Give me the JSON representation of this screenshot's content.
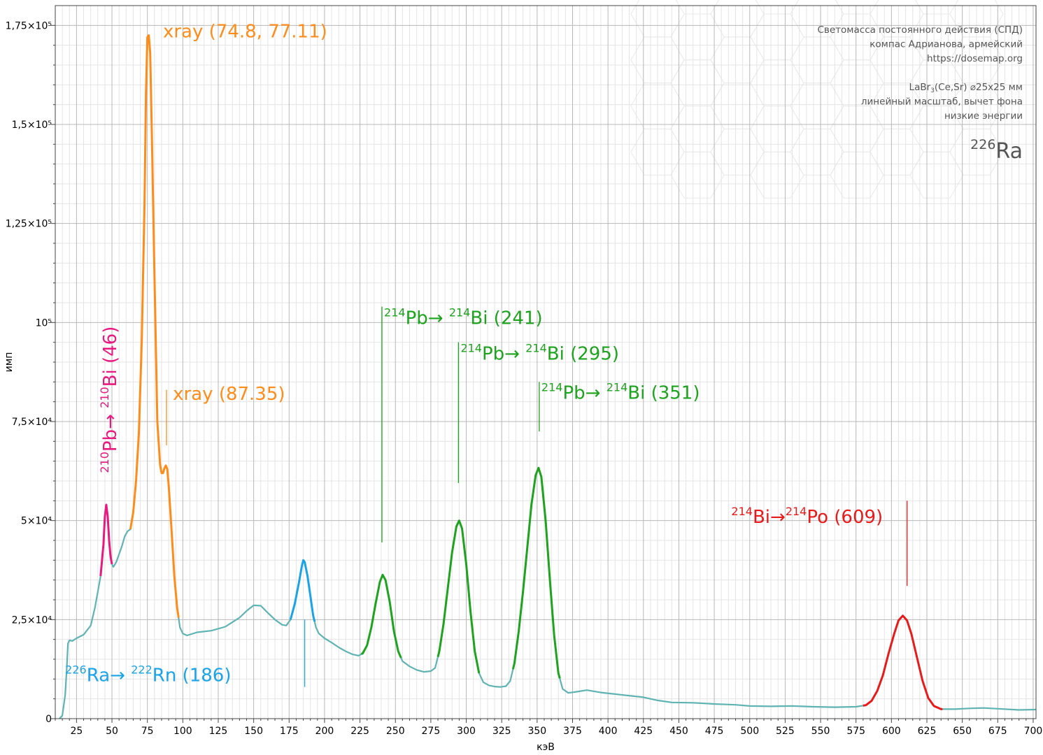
{
  "chart_data": {
    "type": "line",
    "xlabel": "кэВ",
    "ylabel": "имп",
    "xlim": [
      10,
      702
    ],
    "ylim": [
      0,
      180000
    ],
    "x_ticks": [
      25,
      50,
      75,
      100,
      125,
      150,
      175,
      200,
      225,
      250,
      275,
      300,
      325,
      350,
      375,
      400,
      425,
      450,
      475,
      500,
      525,
      550,
      575,
      600,
      625,
      650,
      675,
      700
    ],
    "y_ticks": [
      {
        "value": 0,
        "label": "0"
      },
      {
        "value": 25000,
        "label": "2,5×10⁴"
      },
      {
        "value": 50000,
        "label": "5×10⁴"
      },
      {
        "value": 75000,
        "label": "7,5×10⁴"
      },
      {
        "value": 100000,
        "label": "10⁵"
      },
      {
        "value": 125000,
        "label": "1,25×10⁵"
      },
      {
        "value": 150000,
        "label": "1,5×10⁵"
      },
      {
        "value": 175000,
        "label": "1,75×10⁵"
      }
    ],
    "grid": true,
    "spectrum": {
      "name": "",
      "color": "#5fb3b3",
      "points": [
        [
          13,
          0
        ],
        [
          15,
          800
        ],
        [
          17,
          6000
        ],
        [
          18,
          12000
        ],
        [
          19,
          19000
        ],
        [
          20,
          19800
        ],
        [
          22,
          19600
        ],
        [
          25,
          20300
        ],
        [
          30,
          21200
        ],
        [
          35,
          23500
        ],
        [
          38,
          28000
        ],
        [
          40,
          32000
        ],
        [
          42,
          36000
        ],
        [
          44,
          44000
        ],
        [
          45,
          51000
        ],
        [
          46,
          54000
        ],
        [
          47,
          51000
        ],
        [
          48,
          45000
        ],
        [
          49,
          41000
        ],
        [
          50,
          39000
        ],
        [
          51,
          38300
        ],
        [
          53,
          39500
        ],
        [
          55,
          41500
        ],
        [
          57,
          43500
        ],
        [
          59,
          46000
        ],
        [
          61,
          47300
        ],
        [
          63,
          47800
        ],
        [
          65,
          52000
        ],
        [
          67,
          60000
        ],
        [
          69,
          72000
        ],
        [
          71,
          95000
        ],
        [
          73,
          130000
        ],
        [
          74,
          158000
        ],
        [
          75,
          172000
        ],
        [
          76,
          172500
        ],
        [
          77,
          168000
        ],
        [
          78,
          150000
        ],
        [
          80,
          112000
        ],
        [
          82,
          75000
        ],
        [
          84,
          64000
        ],
        [
          85,
          62000
        ],
        [
          86,
          62000
        ],
        [
          87,
          63200
        ],
        [
          88,
          63900
        ],
        [
          89,
          63000
        ],
        [
          90,
          59000
        ],
        [
          92,
          48000
        ],
        [
          94,
          36000
        ],
        [
          96,
          28000
        ],
        [
          98,
          23000
        ],
        [
          100,
          21500
        ],
        [
          103,
          21000
        ],
        [
          110,
          21800
        ],
        [
          120,
          22200
        ],
        [
          130,
          23200
        ],
        [
          140,
          25500
        ],
        [
          145,
          27200
        ],
        [
          150,
          28600
        ],
        [
          155,
          28500
        ],
        [
          160,
          26700
        ],
        [
          165,
          25000
        ],
        [
          170,
          23700
        ],
        [
          173,
          23500
        ],
        [
          176,
          25000
        ],
        [
          179,
          29000
        ],
        [
          182,
          34500
        ],
        [
          184,
          38500
        ],
        [
          185,
          40000
        ],
        [
          186,
          39500
        ],
        [
          188,
          36000
        ],
        [
          190,
          31000
        ],
        [
          192,
          26000
        ],
        [
          194,
          23000
        ],
        [
          196,
          21500
        ],
        [
          200,
          20300
        ],
        [
          205,
          19200
        ],
        [
          210,
          18000
        ],
        [
          215,
          17000
        ],
        [
          220,
          16200
        ],
        [
          224,
          15900
        ],
        [
          227,
          16500
        ],
        [
          230,
          18500
        ],
        [
          233,
          23000
        ],
        [
          236,
          29000
        ],
        [
          239,
          34500
        ],
        [
          241,
          36300
        ],
        [
          243,
          35000
        ],
        [
          246,
          29500
        ],
        [
          249,
          22000
        ],
        [
          252,
          17000
        ],
        [
          255,
          14500
        ],
        [
          260,
          13200
        ],
        [
          265,
          12300
        ],
        [
          270,
          11800
        ],
        [
          275,
          12000
        ],
        [
          278,
          12800
        ],
        [
          281,
          17000
        ],
        [
          284,
          24000
        ],
        [
          287,
          33000
        ],
        [
          290,
          42000
        ],
        [
          293,
          48500
        ],
        [
          295,
          50000
        ],
        [
          297,
          48000
        ],
        [
          300,
          39000
        ],
        [
          303,
          27000
        ],
        [
          306,
          17000
        ],
        [
          309,
          11500
        ],
        [
          312,
          9200
        ],
        [
          316,
          8400
        ],
        [
          320,
          8100
        ],
        [
          324,
          8000
        ],
        [
          328,
          8200
        ],
        [
          331,
          9500
        ],
        [
          334,
          14000
        ],
        [
          337,
          22000
        ],
        [
          340,
          32000
        ],
        [
          343,
          43000
        ],
        [
          346,
          54000
        ],
        [
          349,
          61500
        ],
        [
          351,
          63300
        ],
        [
          353,
          61000
        ],
        [
          356,
          50000
        ],
        [
          359,
          35000
        ],
        [
          362,
          21000
        ],
        [
          365,
          11500
        ],
        [
          368,
          7500
        ],
        [
          372,
          6500
        ],
        [
          378,
          6800
        ],
        [
          385,
          7200
        ],
        [
          395,
          6600
        ],
        [
          405,
          6200
        ],
        [
          415,
          5800
        ],
        [
          425,
          5400
        ],
        [
          435,
          4600
        ],
        [
          445,
          4100
        ],
        [
          460,
          4000
        ],
        [
          475,
          3700
        ],
        [
          490,
          3500
        ],
        [
          500,
          3200
        ],
        [
          515,
          3100
        ],
        [
          530,
          3200
        ],
        [
          545,
          3000
        ],
        [
          560,
          2900
        ],
        [
          575,
          3000
        ],
        [
          582,
          3400
        ],
        [
          586,
          4500
        ],
        [
          590,
          7000
        ],
        [
          594,
          11000
        ],
        [
          598,
          16500
        ],
        [
          602,
          21500
        ],
        [
          605,
          24800
        ],
        [
          608,
          26000
        ],
        [
          611,
          24800
        ],
        [
          614,
          21500
        ],
        [
          618,
          15500
        ],
        [
          622,
          9500
        ],
        [
          626,
          5200
        ],
        [
          630,
          3200
        ],
        [
          635,
          2400
        ],
        [
          645,
          2400
        ],
        [
          655,
          2600
        ],
        [
          665,
          2700
        ],
        [
          675,
          2500
        ],
        [
          690,
          2200
        ],
        [
          702,
          2300
        ]
      ]
    },
    "highlights": [
      {
        "from": 42,
        "to": 50,
        "color": "#e8197f"
      },
      {
        "from": 63,
        "to": 97,
        "color": "#ff8c1a"
      },
      {
        "from": 176,
        "to": 193,
        "color": "#1aa3e8"
      },
      {
        "from": 226,
        "to": 254,
        "color": "#1da31d"
      },
      {
        "from": 280,
        "to": 309,
        "color": "#1da31d"
      },
      {
        "from": 333,
        "to": 366,
        "color": "#1da31d"
      },
      {
        "from": 580,
        "to": 636,
        "color": "#e81a1a"
      }
    ],
    "annotations": [
      {
        "id": "pb210",
        "parts": [
          [
            "sup",
            "210"
          ],
          [
            "t",
            "Pb→ "
          ],
          [
            "sup",
            "210"
          ],
          [
            "t",
            "Bi (46)"
          ]
        ],
        "color": "#e8197f",
        "vertical": true,
        "x": 46,
        "y": 62000
      },
      {
        "id": "xray1",
        "parts": [
          [
            "t",
            "xray (74.8, 77.11)"
          ]
        ],
        "color": "#ff8c1a",
        "x": 86,
        "y": 172000
      },
      {
        "id": "xray2",
        "parts": [
          [
            "t",
            "xray (87.35)"
          ]
        ],
        "color": "#ff8c1a",
        "x": 93,
        "y": 80500,
        "line": {
          "x": 88.5,
          "y1": 69000,
          "y2": 83000
        }
      },
      {
        "id": "ra226",
        "parts": [
          [
            "sup",
            "226"
          ],
          [
            "t",
            "Ra→ "
          ],
          [
            "sup",
            "222"
          ],
          [
            "t",
            "Rn (186)"
          ]
        ],
        "color": "#1aa3e8",
        "x": 17,
        "y": 9400,
        "line": {
          "x": 186,
          "y1": 8000,
          "y2": 25000
        }
      },
      {
        "id": "pb214a",
        "parts": [
          [
            "sup",
            "214"
          ],
          [
            "t",
            "Pb→ "
          ],
          [
            "sup",
            "214"
          ],
          [
            "t",
            "Bi (241)"
          ]
        ],
        "color": "#1da31d",
        "x": 242,
        "y": 99600,
        "line": {
          "x": 240.5,
          "y1": 44500,
          "y2": 104000
        }
      },
      {
        "id": "pb214b",
        "parts": [
          [
            "sup",
            "214"
          ],
          [
            "t",
            "Pb→ "
          ],
          [
            "sup",
            "214"
          ],
          [
            "t",
            "Bi (295)"
          ]
        ],
        "color": "#1da31d",
        "x": 296,
        "y": 90600,
        "line": {
          "x": 294.5,
          "y1": 59500,
          "y2": 95000
        }
      },
      {
        "id": "pb214c",
        "parts": [
          [
            "sup",
            "214"
          ],
          [
            "t",
            "Pb→ "
          ],
          [
            "sup",
            "214"
          ],
          [
            "t",
            "Bi (351)"
          ]
        ],
        "color": "#1da31d",
        "x": 353,
        "y": 80700,
        "line": {
          "x": 351.5,
          "y1": 72500,
          "y2": 85000
        }
      },
      {
        "id": "bi214",
        "parts": [
          [
            "sup",
            "214"
          ],
          [
            "t",
            "Bi→"
          ],
          [
            "sup",
            "214"
          ],
          [
            "t",
            "Po (609)"
          ]
        ],
        "color": "#e81a1a",
        "x": 487,
        "y": 49400,
        "line": {
          "x": 611,
          "y1": 33500,
          "y2": 55000
        }
      }
    ]
  },
  "info": {
    "lines": [
      [
        [
          "t",
          "Светомасса постоянного действия (СПД)"
        ]
      ],
      [
        [
          "t",
          "компас Адрианова, армейский"
        ]
      ],
      [
        [
          "t",
          "https://dosemap.org"
        ]
      ],
      [
        [
          "t",
          ""
        ]
      ],
      [
        [
          "t",
          "LaBr"
        ],
        [
          "sub",
          "3"
        ],
        [
          "t",
          "(Ce,Sr) ⌀25x25 мм"
        ]
      ],
      [
        [
          "t",
          "линейный масштаб, вычет фона"
        ]
      ],
      [
        [
          "t",
          "низкие энергии"
        ]
      ]
    ],
    "isotope": [
      [
        "sup",
        "226"
      ],
      [
        "t",
        "Ra"
      ]
    ],
    "color": "#555555"
  }
}
